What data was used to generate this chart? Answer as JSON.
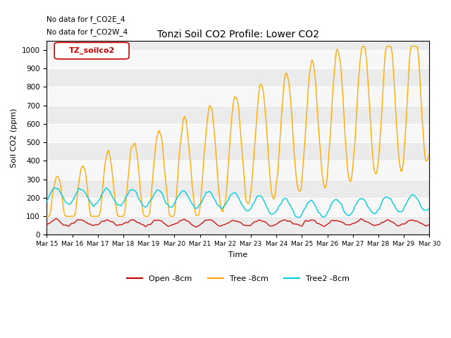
{
  "title": "Tonzi Soil CO2 Profile: Lower CO2",
  "ylabel": "Soil CO2 (ppm)",
  "xlabel": "Time",
  "annotation_lines": [
    "No data for f_CO2E_4",
    "No data for f_CO2W_4"
  ],
  "legend_label": "TZ_soilco2",
  "legend_entries": [
    "Open -8cm",
    "Tree -8cm",
    "Tree2 -8cm"
  ],
  "line_colors": [
    "#cc0000",
    "#ffaa00",
    "#00ccdd"
  ],
  "ylim": [
    0,
    1050
  ],
  "xlim": [
    0,
    15
  ],
  "y_ticks": [
    0,
    100,
    200,
    300,
    400,
    500,
    600,
    700,
    800,
    900,
    1000
  ],
  "band_colors": [
    "#ebebeb",
    "#f7f7f7"
  ],
  "figsize": [
    6.4,
    4.8
  ],
  "dpi": 100
}
